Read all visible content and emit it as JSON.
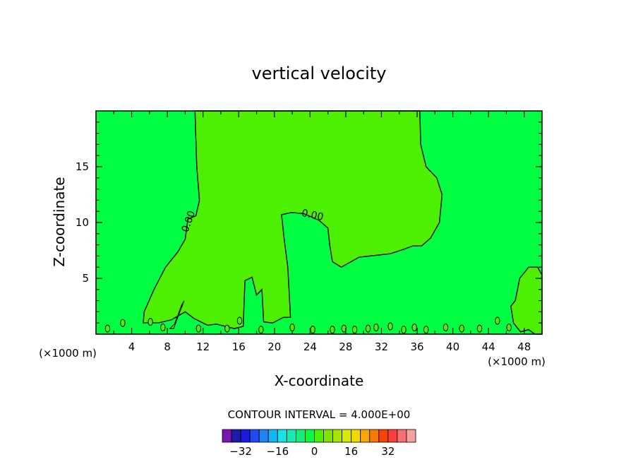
{
  "chart_data": {
    "type": "heatmap",
    "title": "vertical velocity",
    "xlabel": "X-coordinate",
    "ylabel": "Z-coordinate",
    "x_unit_left": "(×1000 m)",
    "x_unit_right": "(×1000 m)",
    "xlim": [
      0,
      50
    ],
    "ylim": [
      0,
      20
    ],
    "xticks": [
      4,
      8,
      12,
      16,
      20,
      24,
      28,
      32,
      36,
      40,
      44,
      48
    ],
    "xtick_labels": [
      "4",
      "8",
      "12",
      "16",
      "20",
      "24",
      "28",
      "32",
      "36",
      "40",
      "44",
      "48"
    ],
    "yticks": [
      5,
      10,
      15
    ],
    "ytick_labels": [
      "5",
      "10",
      "15"
    ],
    "contour_labels": [
      "0.00",
      "0.00"
    ],
    "contour_interval_text": "CONTOUR INTERVAL = 4.000E+00",
    "colorbar": {
      "levels": [
        -36,
        -32,
        -28,
        -24,
        -20,
        -16,
        -12,
        -8,
        -4,
        0,
        4,
        8,
        12,
        16,
        20,
        24,
        28,
        32,
        36
      ],
      "colors": [
        "#7a16b0",
        "#1c1ca8",
        "#1a1ad8",
        "#1e4cf0",
        "#1f84f2",
        "#12b6f4",
        "#18e4e6",
        "#16eab0",
        "#16ee7c",
        "#00ff40",
        "#4cf000",
        "#7ee400",
        "#a8e400",
        "#d8ea00",
        "#f0d800",
        "#f8a800",
        "#f87a00",
        "#f84400",
        "#f84040",
        "#f87070",
        "#f8a0a0"
      ],
      "tick_values": [
        -32,
        -16,
        0,
        16,
        32
      ],
      "tick_labels": [
        "−32",
        "−16",
        "0",
        "16",
        "32"
      ]
    },
    "fill_colors": {
      "background": "#00ff40",
      "positive": "#4cf000",
      "strong_positive": "#7ee400"
    }
  }
}
